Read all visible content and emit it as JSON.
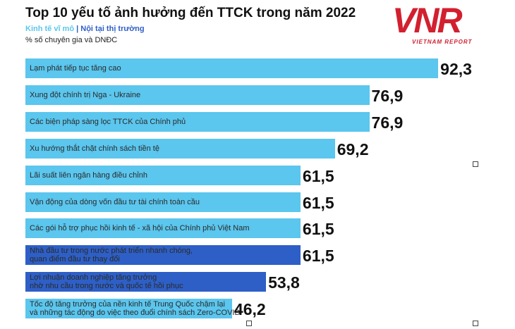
{
  "chart_data": {
    "type": "bar",
    "orientation": "horizontal",
    "title": "Top 10 yếu tố ảnh hưởng đến TTCK trong năm 2022",
    "subtitle": "% số chuyên gia và DNĐC",
    "legend_separator": "|",
    "logo": {
      "mark": "VNR",
      "text": "VIETNAM REPORT"
    },
    "categories": [
      "Lạm phát tiếp tục tăng cao",
      "Xung đột chính trị Nga - Ukraine",
      "Các biện pháp sàng lọc TTCK của Chính phủ",
      "Xu hướng thắt chặt chính sách tiền tệ",
      "Lãi suất liên ngân hàng điều chỉnh",
      "Vận động của dòng vốn đầu tư tài chính toàn cầu",
      "Các gói hỗ trợ phục hồi kinh tế - xã hội của Chính phủ Việt Nam",
      "Nhà đầu tư trong nước phát triển nhanh chóng,\nquan điểm đầu tư thay đổi",
      "Lợi nhuận doanh nghiệp tăng trưởng\nnhờ nhu cầu trong nước và quốc tế hồi phục",
      "Tốc độ tăng trưởng của nền kinh tế Trung Quốc chậm lại\nvà những tác động do việc theo đuổi chính sách Zero-COVID"
    ],
    "series": [
      {
        "name": "Kinh tế vĩ mô",
        "color": "#5bc6ee",
        "values": [
          92.3,
          76.9,
          76.9,
          69.2,
          61.5,
          61.5,
          61.5,
          null,
          null,
          46.2
        ],
        "value_labels": [
          "92,3",
          "76,9",
          "76,9",
          "69,2",
          "61,5",
          "61,5",
          "61,5",
          null,
          null,
          "46,2"
        ]
      },
      {
        "name": "Nội tại thị trường",
        "color": "#2e5fc6",
        "values": [
          null,
          null,
          null,
          null,
          null,
          null,
          null,
          61.5,
          53.8,
          null
        ],
        "value_labels": [
          null,
          null,
          null,
          null,
          null,
          null,
          null,
          "61,5",
          "53,8",
          null
        ]
      }
    ],
    "xlim": [
      0,
      100
    ],
    "legend": "top-left"
  }
}
